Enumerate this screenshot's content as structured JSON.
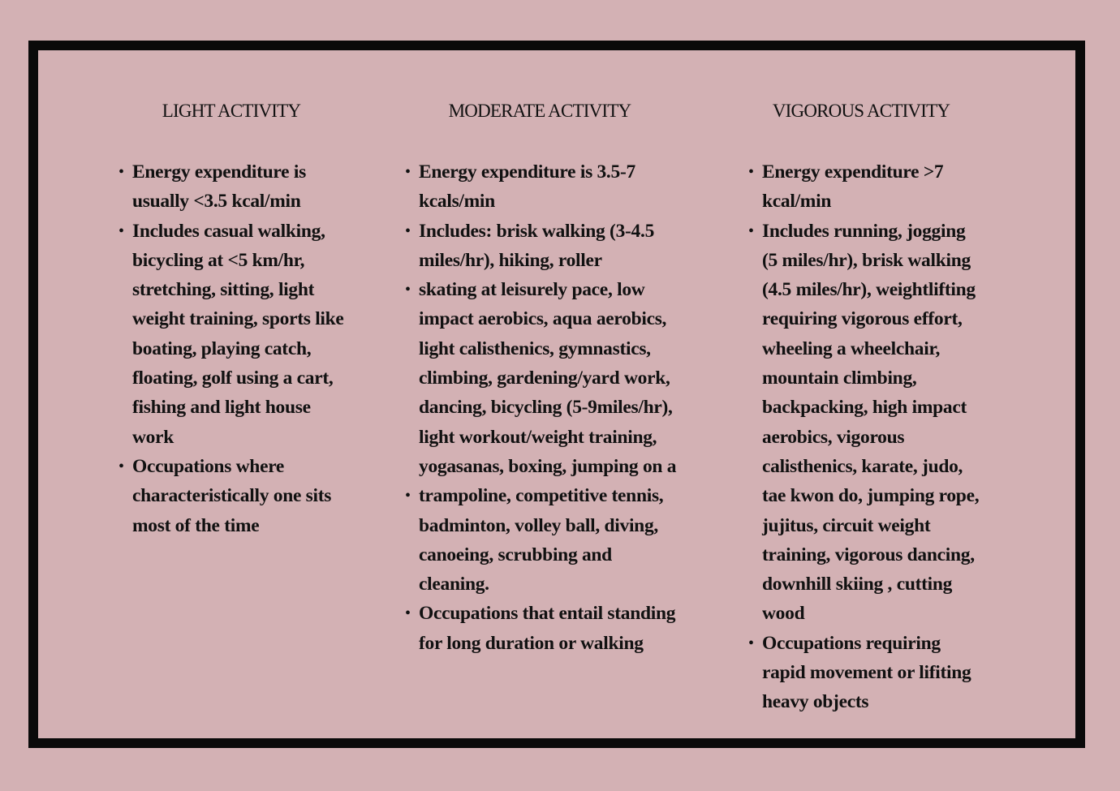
{
  "colors": {
    "background": "#d3b1b4",
    "border": "#0a0a0a",
    "text": "#111111"
  },
  "columns": [
    {
      "heading": "LIGHT ACTIVITY",
      "bullets": [
        [
          "Energy expenditure is",
          "usually <3.5 kcal/min"
        ],
        [
          "Includes casual walking,",
          "bicycling at <5 km/hr,",
          "stretching, sitting, light",
          "weight training, sports like",
          "boating, playing catch,",
          "floating, golf using a cart,",
          "fishing and light house",
          "work"
        ],
        [
          "Occupations where",
          "characteristically one sits",
          "most of the time"
        ]
      ]
    },
    {
      "heading": "MODERATE ACTIVITY",
      "bullets": [
        [
          "Energy expenditure is 3.5-7",
          "kcals/min"
        ],
        [
          "Includes: brisk walking (3-4.5",
          "miles/hr), hiking, roller"
        ],
        [
          "skating at leisurely pace, low",
          "impact aerobics, aqua aerobics,",
          "light calisthenics, gymnastics,",
          "climbing, gardening/yard work,",
          "dancing, bicycling (5-9miles/hr),",
          "light workout/weight training,",
          "yogasanas, boxing, jumping on a"
        ],
        [
          "trampoline, competitive tennis,",
          "badminton, volley ball, diving,",
          "canoeing, scrubbing and",
          "cleaning."
        ],
        [
          "Occupations that entail standing",
          "for long duration or walking"
        ]
      ]
    },
    {
      "heading": "VIGOROUS ACTIVITY",
      "bullets": [
        [
          "Energy expenditure >7",
          "kcal/min"
        ],
        [
          "Includes running, jogging",
          "(5 miles/hr), brisk walking",
          "(4.5 miles/hr), weightlifting",
          "requiring vigorous effort,",
          "wheeling a wheelchair,",
          "mountain climbing,",
          "backpacking, high impact",
          "aerobics, vigorous",
          "calisthenics, karate, judo,",
          "tae kwon do, jumping rope,",
          "jujitus, circuit weight",
          "training, vigorous dancing,",
          "downhill skiing , cutting",
          "wood"
        ],
        [
          "Occupations requiring",
          "rapid movement or lifiting",
          "heavy objects"
        ]
      ]
    }
  ]
}
